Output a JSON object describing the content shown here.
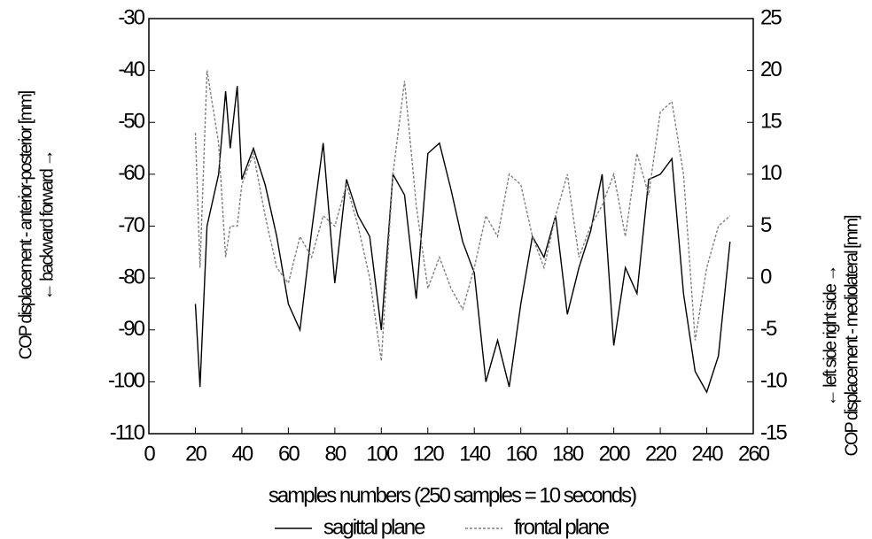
{
  "chart_data": {
    "type": "line",
    "x_label": "samples numbers (250 samples = 10 seconds)",
    "y_label": [
      "COP displacement - anterior-posterior [mm]",
      "← backward     forward →"
    ],
    "y2_label": [
      "← left side     right side →",
      "COP displacement - mediolateral [mm]"
    ],
    "x": [
      20,
      22,
      25,
      30,
      33,
      35,
      38,
      40,
      45,
      50,
      55,
      60,
      65,
      70,
      75,
      80,
      85,
      90,
      95,
      100,
      105,
      110,
      115,
      120,
      125,
      130,
      135,
      140,
      145,
      150,
      155,
      160,
      165,
      170,
      175,
      180,
      185,
      190,
      195,
      200,
      205,
      210,
      215,
      220,
      225,
      230,
      235,
      240,
      245,
      250
    ],
    "series": [
      {
        "name": "sagittal plane",
        "color": "#000000",
        "dash": "solid",
        "values": [
          -85,
          -101,
          -70,
          -60,
          -44,
          -55,
          -43,
          -61,
          -55,
          -62,
          -72,
          -85,
          -90,
          -71,
          -54,
          -81,
          -61,
          -68,
          -72,
          -90,
          -60,
          -64,
          -84,
          -56,
          -54,
          -63,
          -73,
          -79,
          -100,
          -92,
          -101,
          -85,
          -72,
          -76,
          -68,
          -87,
          -78,
          -71,
          -60,
          -93,
          -78,
          -83,
          -61,
          -60,
          -57,
          -83,
          -98,
          -102,
          -95,
          -73
        ]
      },
      {
        "name": "frontal plane",
        "color": "#808080",
        "dash": "dashed",
        "axis": "y2",
        "values": [
          14,
          1,
          20,
          13,
          2,
          5,
          5,
          9,
          12,
          6,
          1,
          -0.5,
          4,
          2,
          6,
          5,
          9,
          5,
          0,
          -8,
          10,
          19,
          7,
          -1,
          2,
          -1,
          -3,
          1,
          6,
          4,
          10,
          9,
          4,
          1,
          6,
          10,
          2,
          5,
          7,
          10,
          4,
          12,
          8,
          16,
          17,
          10,
          -6,
          1,
          5,
          6
        ]
      }
    ],
    "xlim": [
      0,
      260
    ],
    "xticks": [
      0,
      20,
      40,
      60,
      80,
      100,
      120,
      140,
      160,
      180,
      200,
      220,
      240,
      260
    ],
    "ylim": [
      -110,
      -30
    ],
    "yticks": [
      -110,
      -100,
      -90,
      -80,
      -70,
      -60,
      -50,
      -40,
      -30
    ],
    "y2lim": [
      -15,
      25
    ],
    "y2ticks": [
      -15,
      -10,
      -5,
      0,
      5,
      10,
      15,
      20,
      25
    ],
    "legend": "bottom"
  }
}
